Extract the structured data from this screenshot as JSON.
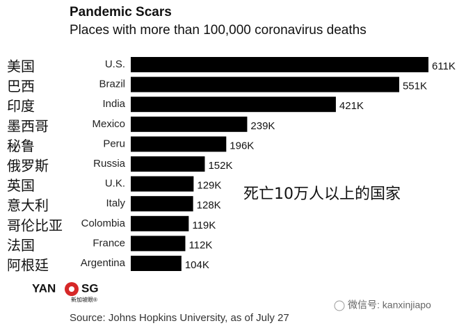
{
  "chart_data": {
    "type": "bar",
    "orientation": "horizontal",
    "title": "Pandemic Scars",
    "subtitle": "Places with more than 100,000 coronavirus deaths",
    "categories": [
      "U.S.",
      "Brazil",
      "India",
      "Mexico",
      "Peru",
      "Russia",
      "U.K.",
      "Italy",
      "Colombia",
      "France",
      "Argentina"
    ],
    "category_labels_cn": [
      "美国",
      "巴西",
      "印度",
      "墨西哥",
      "秘鲁",
      "俄罗斯",
      "英国",
      "意大利",
      "哥伦比亚",
      "法国",
      "阿根廷"
    ],
    "values": [
      611,
      551,
      421,
      239,
      196,
      152,
      129,
      128,
      119,
      112,
      104
    ],
    "value_labels": [
      "611K",
      "551K",
      "421K",
      "239K",
      "196K",
      "152K",
      "129K",
      "128K",
      "119K",
      "112K",
      "104K"
    ],
    "color": "#000000",
    "annotation": "死亡10万人以上的国家",
    "source": "Source: Johns Hopkins University, as of July 27",
    "logo": {
      "left": "YAN",
      "right": "SG",
      "caption": "新加坡眼®"
    },
    "watermark": "微信号: kanxinjiapo"
  }
}
